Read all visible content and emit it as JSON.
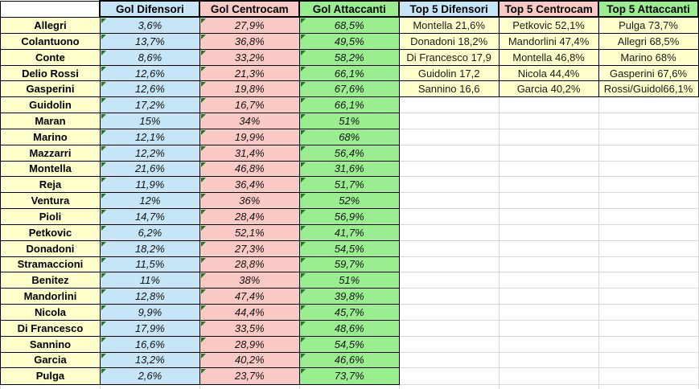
{
  "colors": {
    "name_fill": "#ffffcb",
    "difensori_fill": "#c6e6f7",
    "centrocam_fill": "#f8c9c5",
    "attaccanti_fill": "#9aee90",
    "top5_fill": "#ffffcb",
    "error_triangle": "#1e7a1e",
    "gridline": "#d6d6d6",
    "cell_border": "#000000"
  },
  "main_table": {
    "corner_label": "",
    "columns": [
      "Gol Difensori",
      "Gol Centrocam",
      "Gol Attaccanti"
    ],
    "rows": [
      [
        "Allegri",
        "3,6%",
        "27,9%",
        "68,5%"
      ],
      [
        "Colantuono",
        "13,7%",
        "36,8%",
        "49,5%"
      ],
      [
        "Conte",
        "8,6%",
        "33,2%",
        "58,2%"
      ],
      [
        "Delio Rossi",
        "12,6%",
        "21,3%",
        "66,1%"
      ],
      [
        "Gasperini",
        "12,6%",
        "19,8%",
        "67,6%"
      ],
      [
        "Guidolin",
        "17,2%",
        "16,7%",
        "66,1%"
      ],
      [
        "Maran",
        "15%",
        "34%",
        "51%"
      ],
      [
        "Marino",
        "12,1%",
        "19,9%",
        "68%"
      ],
      [
        "Mazzarri",
        "12,2%",
        "31,4%",
        "56,4%"
      ],
      [
        "Montella",
        "21,6%",
        "46,8%",
        "31,6%"
      ],
      [
        "Reja",
        "11,9%",
        "36,4%",
        "51,7%"
      ],
      [
        "Ventura",
        "12%",
        "36%",
        "52%"
      ],
      [
        "Pioli",
        "14,7%",
        "28,4%",
        "56,9%"
      ],
      [
        "Petkovic",
        "6,2%",
        "52,1%",
        "41,7%"
      ],
      [
        "Donadoni",
        "18,2%",
        "27,3%",
        "54,5%"
      ],
      [
        "Stramaccioni",
        "11,5%",
        "28,8%",
        "59,7%"
      ],
      [
        "Benitez",
        "11%",
        "38%",
        "51%"
      ],
      [
        "Mandorlini",
        "12,8%",
        "47,4%",
        "39,8%"
      ],
      [
        "Nicola",
        "9,9%",
        "44,4%",
        "45,7%"
      ],
      [
        "Di Francesco",
        "17,9%",
        "33,5%",
        "48,6%"
      ],
      [
        "Sannino",
        "16,6%",
        "28,9%",
        "54,5%"
      ],
      [
        "Garcia",
        "13,2%",
        "40,2%",
        "46,6%"
      ],
      [
        "Pulga",
        "2,6%",
        "23,7%",
        "73,7%"
      ]
    ]
  },
  "top5_table": {
    "columns": [
      "Top 5 Difensori",
      "Top 5 Centrocam",
      "Top 5 Attaccanti"
    ],
    "rows": [
      [
        "Montella 21,6%",
        "Petkovic 52,1%",
        "Pulga 73,7%"
      ],
      [
        "Donadoni 18,2%",
        "Mandorlini 47,4%",
        "Allegri 68,5%"
      ],
      [
        "Di Francesco 17,9",
        "Montella 46,8%",
        "Marino 68%"
      ],
      [
        "Guidolin 17,2",
        "Nicola 44,4%",
        "Gasperini 67,6%"
      ],
      [
        "Sannino 16,6",
        "Garcia 40,2%",
        "Rossi/Guidol66,1%"
      ]
    ]
  }
}
